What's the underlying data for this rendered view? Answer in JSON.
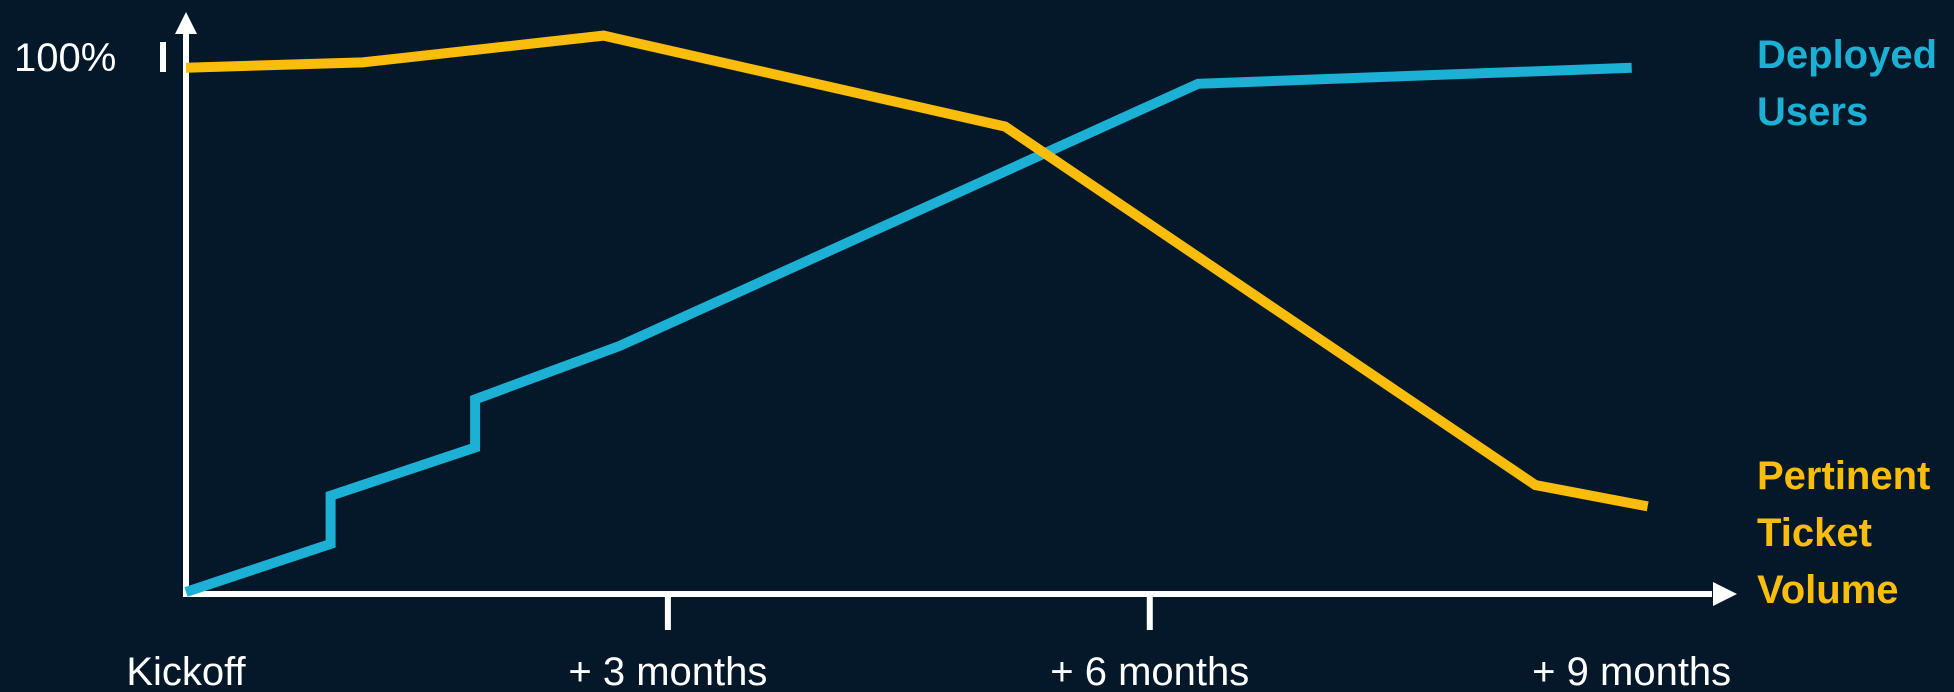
{
  "colors": {
    "background": "#04182a",
    "axis": "#ffffff",
    "deployed_users": "#1bb0d4",
    "pertinent_ticket_volume": "#fbbd0b"
  },
  "chart_data": {
    "type": "line",
    "title": "",
    "xlabel": "",
    "ylabel": "",
    "xlim": [
      0,
      9.5
    ],
    "ylim": [
      0,
      100
    ],
    "y_tick_labels": [
      {
        "value": 100,
        "label": "100%"
      }
    ],
    "x_tick_labels": [
      {
        "value": 0,
        "label": "Kickoff"
      },
      {
        "value": 3,
        "label": "+ 3 months"
      },
      {
        "value": 6,
        "label": "+ 6 months"
      },
      {
        "value": 9,
        "label": "+ 9 months"
      }
    ],
    "grid": false,
    "legend": "right",
    "series": [
      {
        "name": "Deployed Users",
        "label_lines": [
          "Deployed",
          "Users"
        ],
        "color": "#1bb0d4",
        "x": [
          0,
          0.9,
          0.9,
          1.8,
          1.8,
          2.7,
          6.3,
          9.0
        ],
        "y": [
          0,
          9,
          18,
          27,
          36,
          46,
          95,
          98
        ]
      },
      {
        "name": "Pertinent Ticket Volume",
        "label_lines": [
          "Pertinent",
          "Ticket",
          "Volume"
        ],
        "color": "#fbbd0b",
        "x": [
          0,
          1.1,
          2.6,
          5.1,
          8.4,
          9.1
        ],
        "y": [
          98,
          99,
          104,
          87,
          20,
          16
        ]
      }
    ]
  }
}
